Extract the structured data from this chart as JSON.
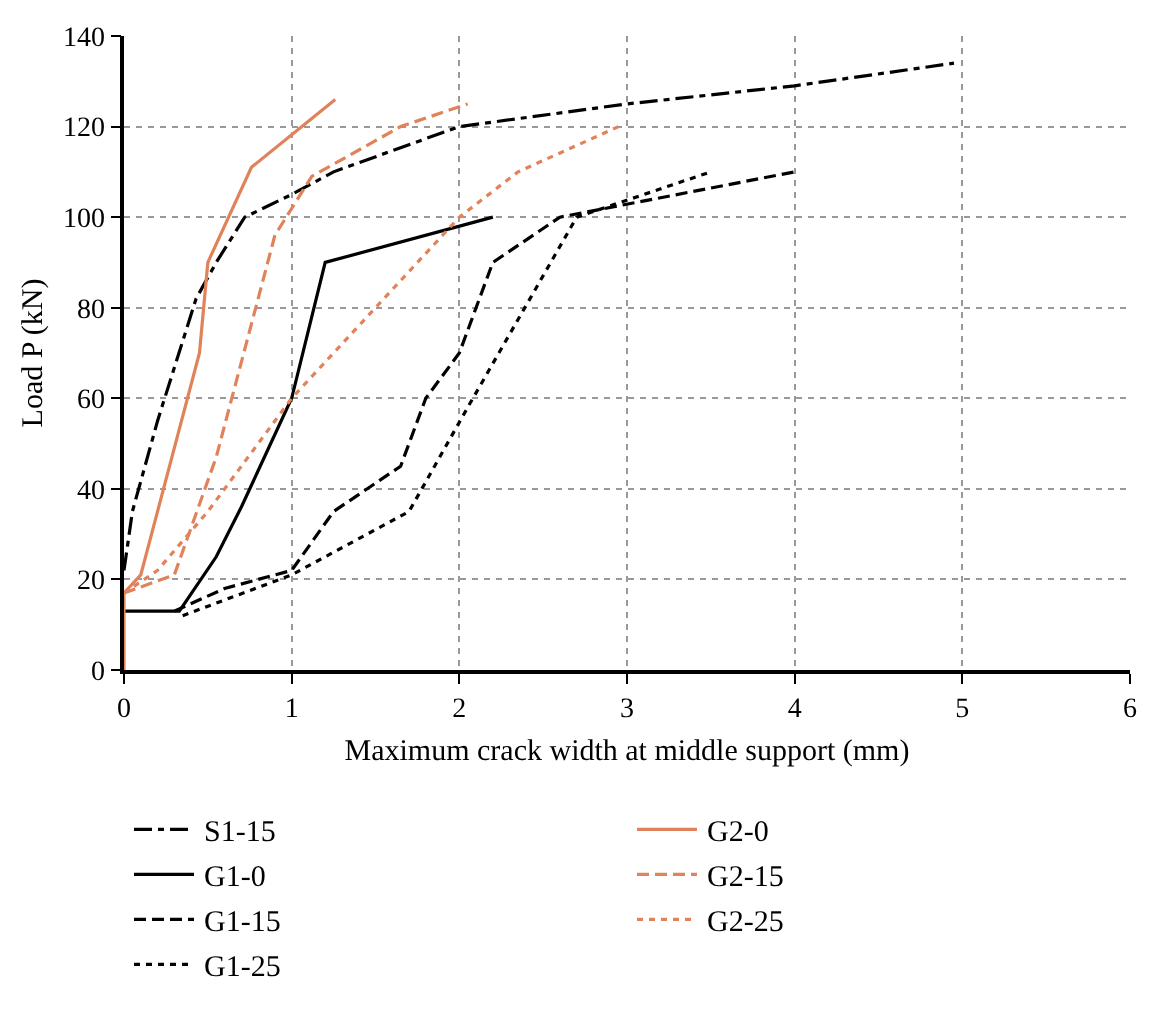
{
  "chart_data": {
    "type": "line",
    "xlabel": "Maximum crack width at middle support (mm)",
    "ylabel": "Load P (kN)",
    "xlim": [
      0,
      6
    ],
    "xticks": [
      0,
      1,
      2,
      3,
      4,
      5,
      6
    ],
    "ylim": [
      0,
      140
    ],
    "yticks": [
      0,
      20,
      40,
      60,
      80,
      100,
      120,
      140
    ],
    "grid": true,
    "legend": "bottom",
    "marker": "none",
    "series": [
      {
        "name": "S1-15",
        "color": "#000000",
        "line_style": "dashdot",
        "x": [
          0,
          0.05,
          0.2,
          0.43,
          0.55,
          0.72,
          1.0,
          1.25,
          2.0,
          3.0,
          4.0,
          4.95
        ],
        "values": [
          22,
          35,
          55,
          82,
          90,
          100,
          105,
          110,
          120,
          125,
          129,
          134
        ]
      },
      {
        "name": "G1-0",
        "color": "#000000",
        "line_style": "solid",
        "x": [
          0,
          0.33,
          0.55,
          0.7,
          1.0,
          1.2,
          2.2
        ],
        "values": [
          13,
          13,
          25,
          36,
          60,
          90,
          100
        ]
      },
      {
        "name": "G1-15",
        "color": "#000000",
        "line_style": "dashed",
        "x": [
          0.3,
          0.6,
          1.0,
          1.25,
          1.65,
          1.8,
          2.0,
          2.2,
          2.6,
          4.0
        ],
        "values": [
          13,
          18,
          22,
          35,
          45,
          60,
          70,
          90,
          100,
          110
        ]
      },
      {
        "name": "G1-25",
        "color": "#000000",
        "line_style": "dotted",
        "x": [
          0.35,
          1.0,
          1.7,
          2.05,
          2.7,
          3.5
        ],
        "values": [
          12,
          21,
          35,
          58,
          100,
          110
        ]
      },
      {
        "name": "G2-0",
        "color": "#e0825a",
        "line_style": "solid",
        "x": [
          0,
          0,
          0.1,
          0.45,
          0.5,
          0.76,
          1.26
        ],
        "values": [
          0,
          17,
          21,
          70,
          90,
          111,
          126
        ]
      },
      {
        "name": "G2-15",
        "color": "#e0825a",
        "line_style": "dashed",
        "x": [
          0,
          0.3,
          0.55,
          0.9,
          1.12,
          1.65,
          2.05
        ],
        "values": [
          17,
          21,
          47,
          96,
          109,
          120,
          125
        ]
      },
      {
        "name": "G2-25",
        "color": "#e0825a",
        "line_style": "dotted",
        "x": [
          0,
          0.2,
          0.5,
          1.0,
          1.5,
          2.0,
          2.35,
          2.95
        ],
        "values": [
          17,
          22,
          35,
          60,
          80,
          100,
          110,
          120
        ]
      }
    ]
  }
}
